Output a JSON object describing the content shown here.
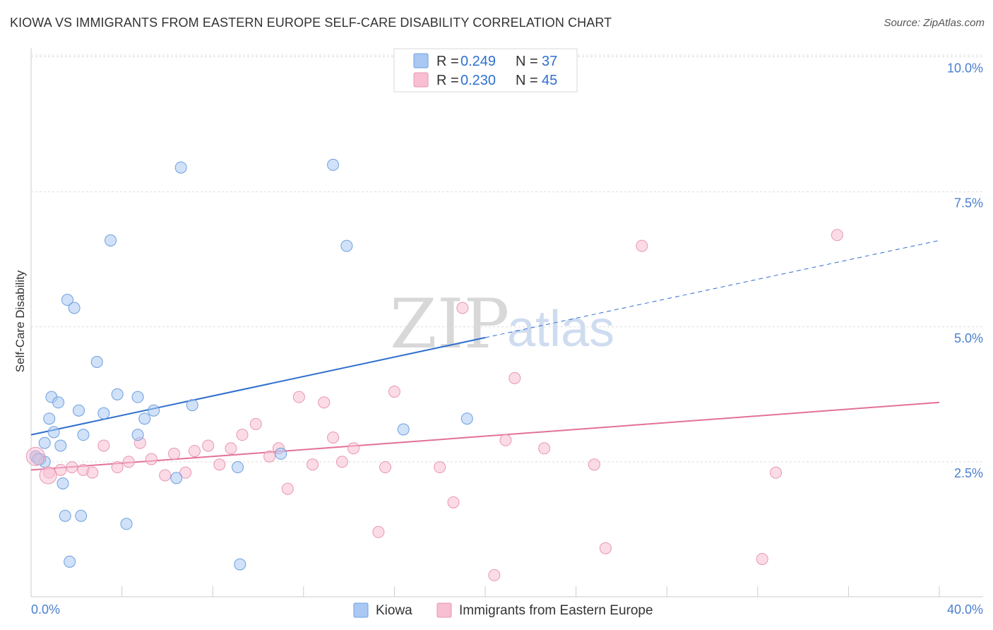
{
  "header": {
    "title": "KIOWA VS IMMIGRANTS FROM EASTERN EUROPE SELF-CARE DISABILITY CORRELATION CHART",
    "source": "Source: ZipAtlas.com"
  },
  "watermark": {
    "zip": "ZIP",
    "atlas": "atlas"
  },
  "chart_data": {
    "type": "scatter",
    "title": "KIOWA VS IMMIGRANTS FROM EASTERN EUROPE SELF-CARE DISABILITY CORRELATION CHART",
    "xlabel": "",
    "ylabel": "Self-Care Disability",
    "xlim": [
      0,
      40
    ],
    "ylim": [
      0,
      10.4
    ],
    "x_tick_labels": {
      "min": "0.0%",
      "max": "40.0%"
    },
    "y_ticks": [
      {
        "value": 2.5,
        "label": "2.5%"
      },
      {
        "value": 5.0,
        "label": "5.0%"
      },
      {
        "value": 7.5,
        "label": "7.5%"
      },
      {
        "value": 10.0,
        "label": "10.0%"
      }
    ],
    "grid": true,
    "legend": [
      {
        "name": "Kiowa",
        "r_label": "R =",
        "r_value": "0.249",
        "n_label": "N =",
        "n_value": "37",
        "color": "#a9c8f2",
        "stroke": "#6e9fe0"
      },
      {
        "name": "Immigrants from Eastern Europe",
        "r_label": "R =",
        "r_value": "0.230",
        "n_label": "N =",
        "n_value": "45",
        "color": "#f7bfd1",
        "stroke": "#e996b2"
      }
    ],
    "series": [
      {
        "name": "Kiowa",
        "color": "#a9c8f2",
        "stroke": "#6e9fe0",
        "trend": {
          "x0": 0,
          "y0": 3.0,
          "x1": 20,
          "y1": 4.8,
          "dashed_x1": 40,
          "dashed_y1": 6.6,
          "color": "#2f6fce"
        },
        "points": [
          [
            0.2,
            2.6
          ],
          [
            0.4,
            2.55
          ],
          [
            0.6,
            2.5
          ],
          [
            0.6,
            2.85
          ],
          [
            0.8,
            3.3
          ],
          [
            0.9,
            3.7
          ],
          [
            1.0,
            3.05
          ],
          [
            1.2,
            3.6
          ],
          [
            1.3,
            2.8
          ],
          [
            1.4,
            2.1
          ],
          [
            1.5,
            1.5
          ],
          [
            1.6,
            5.5
          ],
          [
            1.7,
            0.65
          ],
          [
            1.9,
            5.35
          ],
          [
            2.1,
            3.45
          ],
          [
            2.2,
            1.5
          ],
          [
            2.3,
            3.0
          ],
          [
            2.9,
            4.35
          ],
          [
            3.2,
            3.4
          ],
          [
            3.5,
            6.6
          ],
          [
            3.8,
            3.75
          ],
          [
            4.2,
            1.35
          ],
          [
            4.7,
            3.0
          ],
          [
            4.7,
            3.7
          ],
          [
            5.0,
            3.3
          ],
          [
            5.4,
            3.45
          ],
          [
            6.4,
            2.2
          ],
          [
            6.6,
            7.95
          ],
          [
            7.1,
            3.55
          ],
          [
            9.1,
            2.4
          ],
          [
            9.2,
            0.6
          ],
          [
            11.0,
            2.65
          ],
          [
            13.3,
            8.0
          ],
          [
            13.9,
            6.5
          ],
          [
            16.4,
            3.1
          ],
          [
            19.2,
            3.3
          ],
          [
            0.3,
            2.55
          ]
        ]
      },
      {
        "name": "Immigrants from Eastern Europe",
        "color": "#f7bfd1",
        "stroke": "#e996b2",
        "trend": {
          "x0": 0,
          "y0": 2.35,
          "x1": 40,
          "y1": 3.6,
          "color": "#e3709a"
        },
        "points": [
          [
            0.2,
            2.6
          ],
          [
            0.8,
            2.3
          ],
          [
            1.3,
            2.35
          ],
          [
            1.8,
            2.4
          ],
          [
            2.3,
            2.35
          ],
          [
            2.7,
            2.3
          ],
          [
            3.2,
            2.8
          ],
          [
            3.8,
            2.4
          ],
          [
            4.3,
            2.5
          ],
          [
            4.8,
            2.85
          ],
          [
            5.3,
            2.55
          ],
          [
            5.9,
            2.25
          ],
          [
            6.3,
            2.65
          ],
          [
            6.8,
            2.3
          ],
          [
            7.2,
            2.7
          ],
          [
            7.8,
            2.8
          ],
          [
            8.3,
            2.45
          ],
          [
            8.8,
            2.75
          ],
          [
            9.3,
            3.0
          ],
          [
            9.9,
            3.2
          ],
          [
            10.5,
            2.6
          ],
          [
            10.9,
            2.75
          ],
          [
            11.3,
            2.0
          ],
          [
            11.8,
            3.7
          ],
          [
            12.4,
            2.45
          ],
          [
            12.9,
            3.6
          ],
          [
            13.3,
            2.95
          ],
          [
            13.7,
            2.5
          ],
          [
            14.2,
            2.75
          ],
          [
            15.3,
            1.2
          ],
          [
            15.6,
            2.4
          ],
          [
            16.0,
            3.8
          ],
          [
            18.0,
            2.4
          ],
          [
            18.6,
            1.75
          ],
          [
            19.0,
            5.35
          ],
          [
            20.4,
            0.4
          ],
          [
            20.9,
            2.9
          ],
          [
            21.3,
            4.05
          ],
          [
            22.6,
            2.75
          ],
          [
            24.8,
            2.45
          ],
          [
            25.3,
            0.9
          ],
          [
            26.9,
            6.5
          ],
          [
            32.2,
            0.7
          ],
          [
            32.8,
            2.3
          ],
          [
            35.5,
            6.7
          ]
        ]
      }
    ]
  }
}
